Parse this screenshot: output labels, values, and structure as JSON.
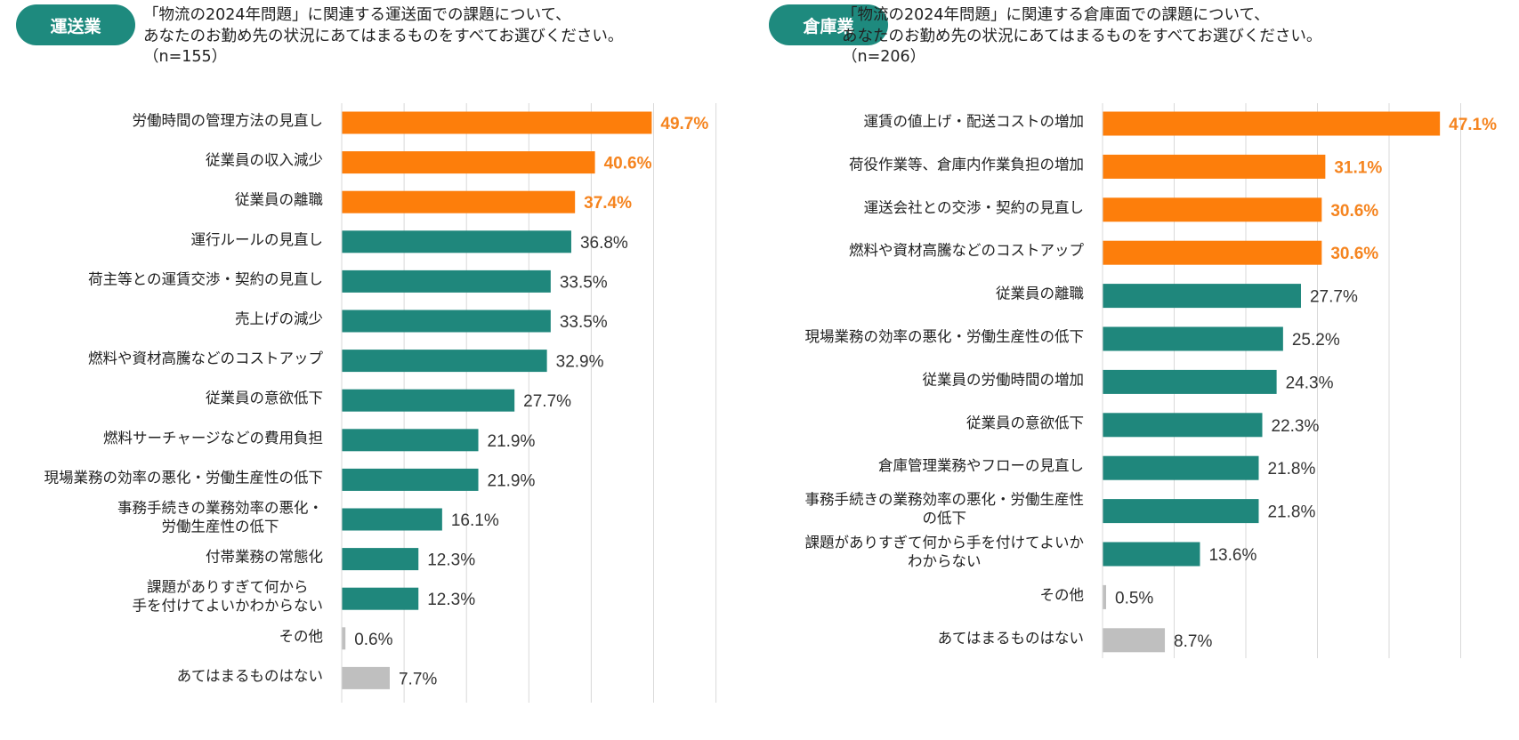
{
  "colors": {
    "highlight": "#fd7e0b",
    "normal": "#1f877c",
    "none": "#bfbfbf",
    "gridline": "#d9d9d9"
  },
  "panels": [
    {
      "badge": "運送業",
      "question_lines": [
        "「物流の2024年問題」に関連する運送面での課題について、",
        "あなたのお勤め先の状況にあてはまるものをすべてお選びください。",
        "（n=155）"
      ]
    },
    {
      "badge": "倉庫業",
      "question_lines": [
        "「物流の2024年問題」に関連する倉庫面での課題について、",
        "あなたのお勤め先の状況にあてはまるものをすべてお選びください。",
        "（n=206）"
      ]
    }
  ],
  "chart_data": [
    {
      "type": "bar",
      "orientation": "horizontal",
      "title": "運送業",
      "unit": "%",
      "xlim": [
        0,
        60
      ],
      "grid": true,
      "categories": [
        [
          "労働時間の管理方法の見直し"
        ],
        [
          "従業員の収入減少"
        ],
        [
          "従業員の離職"
        ],
        [
          "運行ルールの見直し"
        ],
        [
          "荷主等との運賃交渉・契約の見直し"
        ],
        [
          "売上げの減少"
        ],
        [
          "燃料や資材高騰などのコストアップ"
        ],
        [
          "従業員の意欲低下"
        ],
        [
          "燃料サーチャージなどの費用負担"
        ],
        [
          "現場業務の効率の悪化・労働生産性の低下"
        ],
        [
          "事務手続きの業務効率の悪化・",
          "労働生産性の低下"
        ],
        [
          "付帯業務の常態化"
        ],
        [
          "課題がありすぎて何から",
          "手を付けてよいかわからない"
        ],
        [
          "その他"
        ],
        [
          "あてはまるものはない"
        ]
      ],
      "values": [
        49.7,
        40.6,
        37.4,
        36.8,
        33.5,
        33.5,
        32.9,
        27.7,
        21.9,
        21.9,
        16.1,
        12.3,
        12.3,
        0.6,
        7.7
      ],
      "value_labels": [
        "49.7%",
        "40.6%",
        "37.4%",
        "36.8%",
        "33.5%",
        "33.5%",
        "32.9%",
        "27.7%",
        "21.9%",
        "21.9%",
        "16.1%",
        "12.3%",
        "12.3%",
        "0.6%",
        "7.7%"
      ],
      "bar_kinds": [
        "highlight",
        "highlight",
        "highlight",
        "normal",
        "normal",
        "normal",
        "normal",
        "normal",
        "normal",
        "normal",
        "normal",
        "normal",
        "normal",
        "none",
        "none"
      ]
    },
    {
      "type": "bar",
      "orientation": "horizontal",
      "title": "倉庫業",
      "unit": "%",
      "xlim": [
        0,
        50
      ],
      "grid": true,
      "categories": [
        [
          "運賃の値上げ・配送コストの増加"
        ],
        [
          "荷役作業等、倉庫内作業負担の増加"
        ],
        [
          "運送会社との交渉・契約の見直し"
        ],
        [
          "燃料や資材高騰などのコストアップ"
        ],
        [
          "従業員の離職"
        ],
        [
          "現場業務の効率の悪化・労働生産性の低下"
        ],
        [
          "従業員の労働時間の増加"
        ],
        [
          "従業員の意欲低下"
        ],
        [
          "倉庫管理業務やフローの見直し"
        ],
        [
          "事務手続きの業務効率の悪化・労働生産性",
          "の低下"
        ],
        [
          "課題がありすぎて何から手を付けてよいか",
          "わからない"
        ],
        [
          "その他"
        ],
        [
          "あてはまるものはない"
        ]
      ],
      "values": [
        47.1,
        31.1,
        30.6,
        30.6,
        27.7,
        25.2,
        24.3,
        22.3,
        21.8,
        21.8,
        13.6,
        0.5,
        8.7
      ],
      "value_labels": [
        "47.1%",
        "31.1%",
        "30.6%",
        "30.6%",
        "27.7%",
        "25.2%",
        "24.3%",
        "22.3%",
        "21.8%",
        "21.8%",
        "13.6%",
        "0.5%",
        "8.7%"
      ],
      "bar_kinds": [
        "highlight",
        "highlight",
        "highlight",
        "highlight",
        "normal",
        "normal",
        "normal",
        "normal",
        "normal",
        "normal",
        "normal",
        "none",
        "none"
      ]
    }
  ]
}
